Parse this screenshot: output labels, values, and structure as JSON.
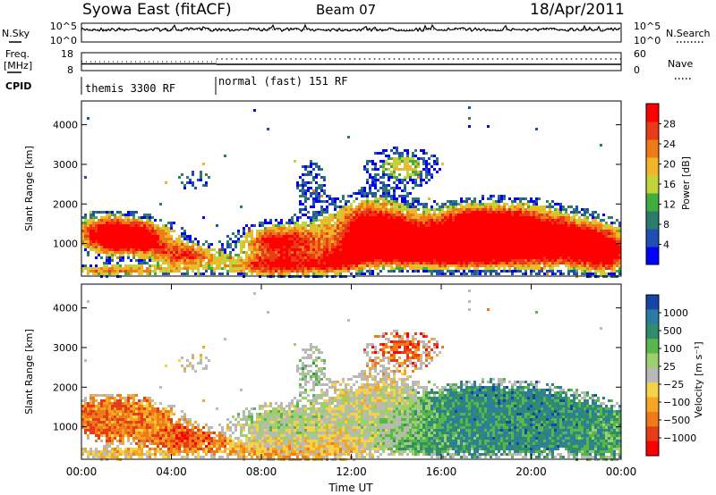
{
  "header": {
    "station": "Syowa East (fitACF)",
    "beam": "Beam 07",
    "date": "18/Apr/2011"
  },
  "chart_data": [
    {
      "id": "nsky-panel",
      "type": "line",
      "left_label": "N.Sky",
      "right_label": "N.Search",
      "yticks_left": [
        "10^5",
        "10^0"
      ],
      "yticks_right": [
        "10^5",
        "10^0"
      ],
      "scale": "log",
      "ylim": [
        1,
        100000
      ]
    },
    {
      "id": "freq-panel",
      "type": "scatter",
      "left_label_line1": "Freq.",
      "left_label_line2": "[MHz]",
      "right_label": "Nave",
      "yticks_left": [
        "18",
        "8"
      ],
      "yticks_right": [
        "60",
        "0"
      ],
      "ylim_left": [
        8,
        18
      ],
      "ylim_right": [
        0,
        60
      ]
    },
    {
      "id": "cpid-panel",
      "type": "table",
      "label": "CPID",
      "segments": [
        {
          "start_hour": 0,
          "end_hour": 6,
          "text": "themis 3300 RF"
        },
        {
          "start_hour": 6,
          "end_hour": 24,
          "text": "normal (fast) 151 RF"
        }
      ]
    },
    {
      "id": "power-panel",
      "type": "heatmap",
      "ylabel": "Slant Range [km]",
      "yticks": [
        "1000",
        "2000",
        "3000",
        "4000"
      ],
      "ylim": [
        180,
        4600
      ],
      "xlim": [
        0,
        24
      ],
      "colorbar_label": "Power [dB]",
      "colorbar_ticks": [
        "4",
        "8",
        "12",
        "16",
        "20",
        "24",
        "28"
      ],
      "colorbar_colors": [
        "#0000ff",
        "#1f4fb2",
        "#2e7b6c",
        "#3fae3f",
        "#c2d43a",
        "#f2b52a",
        "#ee7a18",
        "#e83b17",
        "#ff0000"
      ]
    },
    {
      "id": "velocity-panel",
      "type": "heatmap",
      "ylabel": "Slant Range [km]",
      "yticks": [
        "1000",
        "2000",
        "3000",
        "4000"
      ],
      "ylim": [
        180,
        4600
      ],
      "xlim": [
        0,
        24
      ],
      "xlabel": "Time UT",
      "xticks": [
        "00:00",
        "04:00",
        "08:00",
        "12:00",
        "16:00",
        "20:00",
        "00:00"
      ],
      "colorbar_label": "Velocity [m s⁻¹]",
      "colorbar_ticks": [
        "1000",
        "500",
        "100",
        "25",
        "−25",
        "−100",
        "−500",
        "−1000"
      ],
      "colorbar_colors": [
        "#1446a6",
        "#2b7ba2",
        "#2f8d6a",
        "#58b64a",
        "#9bd06b",
        "#b9b9b9",
        "#f5d247",
        "#f5a623",
        "#ee7a18",
        "#e83b17",
        "#ff0000"
      ]
    }
  ]
}
